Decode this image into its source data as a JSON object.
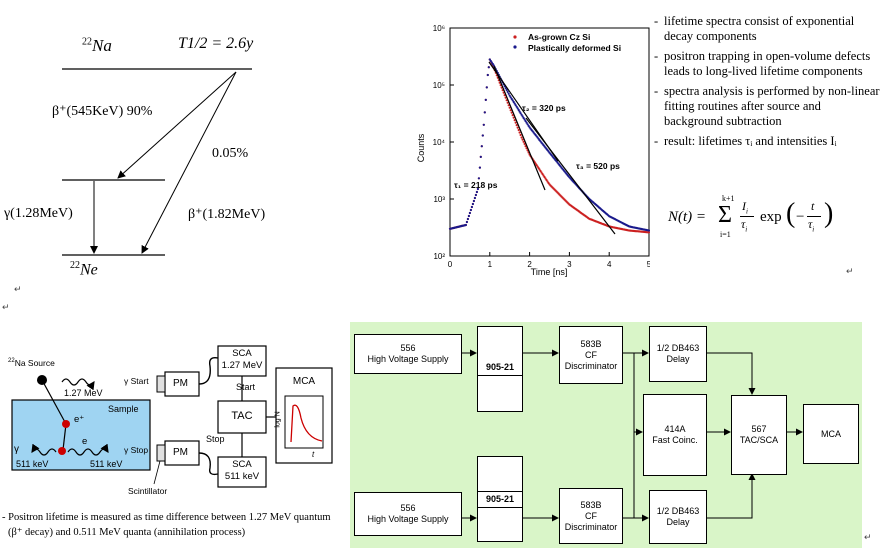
{
  "decay_scheme": {
    "parent": "Na",
    "parent_mass": "22",
    "half_life": "T1/2 = 2.6y",
    "beta_major": "β⁺(545KeV) 90%",
    "beta_minor_branch": "0.05%",
    "gamma": "γ(1.28MeV)",
    "beta_direct": "β⁺(1.82MeV)",
    "daughter": "Ne",
    "daughter_mass": "22"
  },
  "chart_data": {
    "type": "scatter",
    "xlabel": "Time [ns]",
    "ylabel": "Counts",
    "xlim": [
      0,
      5
    ],
    "ylim": [
      100,
      1000000
    ],
    "yscale": "log",
    "x_ticks": [
      "0",
      "1",
      "2",
      "3",
      "4",
      "5"
    ],
    "y_ticks": [
      "10²",
      "10³",
      "10⁴",
      "10⁵",
      "10⁶"
    ],
    "legend_position": "top-right",
    "series": [
      {
        "name": "As-grown Cz Si",
        "color": "#cc2020",
        "x": [
          0.0,
          0.4,
          0.7,
          0.85,
          0.95,
          1.0,
          1.1,
          1.3,
          1.5,
          1.8,
          2.0,
          2.5,
          3.0,
          3.5,
          4.0,
          4.5,
          5.0
        ],
        "y": [
          300,
          350,
          1500,
          20000,
          150000,
          280000,
          200000,
          90000,
          40000,
          12000,
          6000,
          1800,
          800,
          450,
          330,
          280,
          260
        ]
      },
      {
        "name": "Plastically deformed  Si",
        "color": "#1a1a8c",
        "x": [
          0.0,
          0.4,
          0.7,
          0.85,
          0.95,
          1.0,
          1.1,
          1.3,
          1.5,
          1.8,
          2.0,
          2.5,
          3.0,
          3.5,
          4.0,
          4.5,
          5.0
        ],
        "y": [
          300,
          350,
          1500,
          20000,
          150000,
          280000,
          220000,
          120000,
          65000,
          30000,
          18000,
          6500,
          2400,
          1000,
          500,
          330,
          280
        ]
      }
    ],
    "annotations": [
      "τ₂ = 320 ps",
      "τ₃ = 520 ps",
      "τ₁ = 218 ps"
    ]
  },
  "bullets": [
    "lifetime spectra consist of exponential decay components",
    "positron trapping in open-volume defects leads to long-lived lifetime components",
    "spectra analysis is performed by non-linear fitting routines after source and background subtraction",
    "result: lifetimes τᵢ and intensities Iᵢ"
  ],
  "formula": "N(t) = Σ_{i=1}^{k+1} (I_i/τ_i) exp(−t/τ_i)",
  "setup": {
    "source": "Na Source",
    "source_mass": "22",
    "gamma_start_energy": "1.27 MeV",
    "gamma_start": "γ Start",
    "sample": "Sample",
    "e_plus": "e⁺",
    "e_minus": "e",
    "gamma_left": "γ",
    "gamma_left_energy": "511 keV",
    "gamma_right_energy": "511 keV",
    "gamma_stop": "γ Stop",
    "pm": "PM",
    "sca_top": "SCA",
    "sca_top_energy": "1.27 MeV",
    "start": "Start",
    "tac": "TAC",
    "stop": "Stop",
    "sca_bottom": "SCA",
    "sca_bottom_energy": "511 keV",
    "mca": "MCA",
    "log_n": "log N",
    "t": "t",
    "scintillator": "Scintillator"
  },
  "caption": [
    "- Positron lifetime is measured as time difference between 1.27 MeV quantum",
    "(β⁺ decay) and 0.511 MeV quanta (annihilation process)"
  ],
  "block_diagram": {
    "bg": "#d9f5c8",
    "hv1": [
      "556",
      "High Voltage Supply"
    ],
    "hv2": [
      "556",
      "High Voltage Supply"
    ],
    "det1": "905-21",
    "det2": "905-21",
    "cfd1": [
      "583B",
      "CF",
      "Discriminator"
    ],
    "cfd2": [
      "583B",
      "CF",
      "Discriminator"
    ],
    "delay1": [
      "1/2 DB463",
      "Delay"
    ],
    "delay2": [
      "1/2 DB463",
      "Delay"
    ],
    "coinc": [
      "414A",
      "Fast Coinc."
    ],
    "tacsca": [
      "567",
      "TAC/SCA"
    ],
    "mca": "MCA"
  },
  "marks": [
    "↵",
    "↵",
    "↵",
    "↵"
  ]
}
